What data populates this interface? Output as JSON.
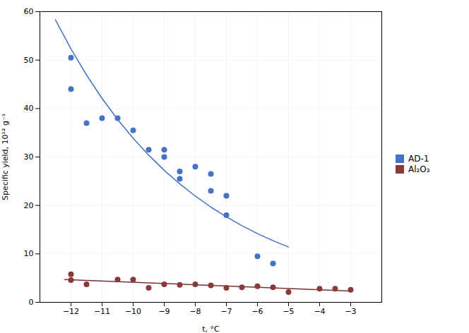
{
  "chart_data": {
    "type": "scatter",
    "xlabel": "t, °C",
    "ylabel": "Specific yield, 10¹² g⁻¹",
    "xlim": [
      -13,
      -2
    ],
    "ylim": [
      0,
      60
    ],
    "xticks": [
      -12,
      -11,
      -10,
      -9,
      -8,
      -7,
      -6,
      -5,
      -4,
      -3
    ],
    "yticks": [
      0,
      10,
      20,
      30,
      40,
      50,
      60
    ],
    "grid": true,
    "legend": "right",
    "series": [
      {
        "name": "AD-1",
        "color": "#4472C4",
        "marker": "circle",
        "x": [
          -12,
          -12,
          -11.5,
          -11,
          -10.5,
          -10,
          -9.5,
          -9,
          -9,
          -8.5,
          -8.5,
          -8,
          -7.5,
          -7.5,
          -7,
          -7,
          -6,
          -5.5
        ],
        "values": [
          44,
          50.5,
          37,
          38,
          38,
          35.5,
          31.5,
          30,
          31.5,
          27,
          25.5,
          28,
          23,
          26.5,
          22,
          18,
          9.5,
          8
        ],
        "fit": {
          "type": "line",
          "color": "#4472C4",
          "x": [
            -12.5,
            -12,
            -11.5,
            -11,
            -10.5,
            -10,
            -9.5,
            -9,
            -8.5,
            -8,
            -7.5,
            -7,
            -6.5,
            -6,
            -5.5,
            -5
          ],
          "values": [
            58.32,
            52.31,
            46.93,
            42.09,
            37.76,
            33.87,
            30.38,
            27.25,
            24.44,
            21.92,
            19.66,
            17.64,
            15.82,
            14.19,
            12.73,
            11.42
          ]
        }
      },
      {
        "name": "Al₂O₃",
        "color": "#8B3A3A",
        "marker": "circle",
        "x": [
          -12,
          -12,
          -11.5,
          -10.5,
          -10,
          -9.5,
          -9,
          -8.5,
          -8,
          -7.5,
          -7,
          -6.5,
          -6,
          -5.5,
          -5,
          -4,
          -3.5,
          -3
        ],
        "values": [
          4.6,
          5.8,
          3.7,
          4.7,
          4.7,
          3.0,
          3.7,
          3.6,
          3.7,
          3.5,
          3.0,
          3.1,
          3.3,
          3.1,
          2.1,
          2.8,
          2.8,
          2.6
        ],
        "fit": {
          "type": "line",
          "color": "#7B3030",
          "x": [
            -12.2,
            -3
          ],
          "values": [
            4.71,
            2.32
          ]
        }
      }
    ]
  }
}
